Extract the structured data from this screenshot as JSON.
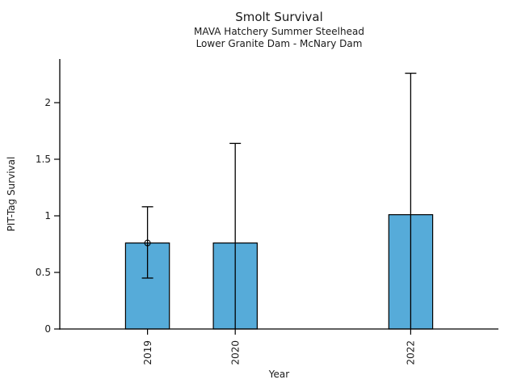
{
  "figure": {
    "background_color": "#ffffff"
  },
  "chart_data": {
    "type": "bar",
    "title": "Smolt Survival",
    "subtitle1": "MAVA Hatchery Summer Steelhead",
    "subtitle2": "Lower Granite Dam - McNary Dam",
    "xlabel": "Year",
    "ylabel": "PIT-Tag Survival",
    "categories": [
      "2019",
      "2020",
      "2022"
    ],
    "x_numeric": [
      2019,
      2020,
      2022
    ],
    "series": [
      {
        "name": "PIT-Tag Survival",
        "values": [
          0.76,
          0.76,
          1.01
        ],
        "ci_high": [
          1.08,
          1.64,
          2.26
        ],
        "ci_low": [
          0.45,
          0,
          0
        ],
        "ci_low_capped": [
          true,
          false,
          false
        ],
        "point_marker": [
          true,
          false,
          false
        ]
      }
    ],
    "xlim": [
      2018,
      2023
    ],
    "ylim": [
      0,
      2.386
    ],
    "y_ticks": [
      0,
      0.5,
      1,
      1.5,
      2
    ],
    "y_tick_labels": [
      "0",
      "0.5",
      "1",
      "1.5",
      "2"
    ],
    "bar_width_years": 0.5,
    "bar_color": "#56ABD9",
    "bar_border_color": "#000000",
    "errorbar_color": "#000000",
    "axis_color": "#000000",
    "text_color": "#1a1a1a",
    "grid": false,
    "legend": false
  }
}
